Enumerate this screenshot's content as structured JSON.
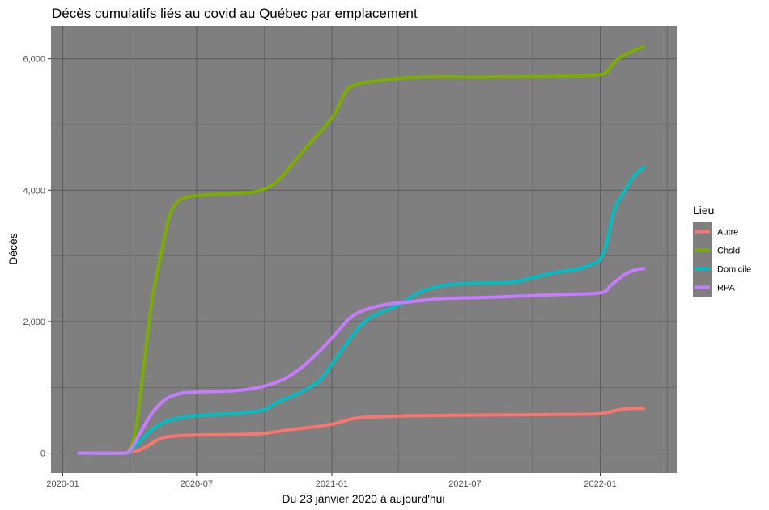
{
  "chart_data": {
    "type": "line",
    "title": "Décès cumulatifs liés au covid au Québec par emplacement",
    "xlabel": "Du 23 janvier 2020 à aujourd'hui",
    "ylabel": "Décès",
    "xlim": [
      "2019-12-16",
      "2022-04-15"
    ],
    "ylim": [
      -300,
      6500
    ],
    "x_ticks": [
      {
        "date": "2020-01-01",
        "label": "2020-01"
      },
      {
        "date": "2020-07-01",
        "label": "2020-07"
      },
      {
        "date": "2021-01-01",
        "label": "2021-01"
      },
      {
        "date": "2021-07-01",
        "label": "2021-07"
      },
      {
        "date": "2022-01-01",
        "label": "2022-01"
      }
    ],
    "y_ticks": [
      {
        "value": 0,
        "label": "0"
      },
      {
        "value": 2000,
        "label": "2,000"
      },
      {
        "value": 4000,
        "label": "4,000"
      },
      {
        "value": 6000,
        "label": "6,000"
      }
    ],
    "background": "#7f7f7f",
    "grid": true,
    "legend": {
      "title": "Lieu",
      "position": "right"
    },
    "series": [
      {
        "name": "Autre",
        "color": "#F8766D",
        "points": [
          [
            "2020-01-23",
            0
          ],
          [
            "2020-03-20",
            0
          ],
          [
            "2020-04-01",
            10
          ],
          [
            "2020-04-15",
            50
          ],
          [
            "2020-05-01",
            150
          ],
          [
            "2020-05-15",
            230
          ],
          [
            "2020-06-01",
            260
          ],
          [
            "2020-07-01",
            275
          ],
          [
            "2020-09-01",
            285
          ],
          [
            "2020-10-01",
            300
          ],
          [
            "2020-11-01",
            350
          ],
          [
            "2020-12-01",
            390
          ],
          [
            "2021-01-01",
            440
          ],
          [
            "2021-02-01",
            530
          ],
          [
            "2021-03-01",
            550
          ],
          [
            "2021-05-01",
            570
          ],
          [
            "2021-08-01",
            580
          ],
          [
            "2021-12-01",
            590
          ],
          [
            "2022-01-01",
            600
          ],
          [
            "2022-01-15",
            630
          ],
          [
            "2022-02-01",
            670
          ],
          [
            "2022-03-01",
            680
          ]
        ]
      },
      {
        "name": "Chsld",
        "color": "#7CAE00",
        "points": [
          [
            "2020-01-23",
            0
          ],
          [
            "2020-03-25",
            0
          ],
          [
            "2020-04-01",
            60
          ],
          [
            "2020-04-10",
            400
          ],
          [
            "2020-04-20",
            1300
          ],
          [
            "2020-05-01",
            2300
          ],
          [
            "2020-05-15",
            3100
          ],
          [
            "2020-05-25",
            3600
          ],
          [
            "2020-06-05",
            3820
          ],
          [
            "2020-06-20",
            3900
          ],
          [
            "2020-07-15",
            3930
          ],
          [
            "2020-09-01",
            3960
          ],
          [
            "2020-09-20",
            3980
          ],
          [
            "2020-10-15",
            4100
          ],
          [
            "2020-11-01",
            4300
          ],
          [
            "2020-12-01",
            4700
          ],
          [
            "2021-01-01",
            5100
          ],
          [
            "2021-01-20",
            5500
          ],
          [
            "2021-02-01",
            5600
          ],
          [
            "2021-03-01",
            5660
          ],
          [
            "2021-05-01",
            5720
          ],
          [
            "2021-08-01",
            5720
          ],
          [
            "2021-12-01",
            5740
          ],
          [
            "2022-01-01",
            5760
          ],
          [
            "2022-01-10",
            5800
          ],
          [
            "2022-01-25",
            6000
          ],
          [
            "2022-02-15",
            6120
          ],
          [
            "2022-03-01",
            6180
          ]
        ]
      },
      {
        "name": "Domicile",
        "color": "#00BFC4",
        "points": [
          [
            "2020-01-23",
            0
          ],
          [
            "2020-03-25",
            0
          ],
          [
            "2020-04-01",
            30
          ],
          [
            "2020-04-15",
            180
          ],
          [
            "2020-05-01",
            350
          ],
          [
            "2020-05-20",
            480
          ],
          [
            "2020-06-10",
            540
          ],
          [
            "2020-07-01",
            570
          ],
          [
            "2020-08-01",
            590
          ],
          [
            "2020-09-01",
            610
          ],
          [
            "2020-10-01",
            660
          ],
          [
            "2020-10-20",
            780
          ],
          [
            "2020-11-15",
            900
          ],
          [
            "2020-12-15",
            1100
          ],
          [
            "2021-01-01",
            1350
          ],
          [
            "2021-01-20",
            1650
          ],
          [
            "2021-02-10",
            1950
          ],
          [
            "2021-03-01",
            2100
          ],
          [
            "2021-04-01",
            2250
          ],
          [
            "2021-05-01",
            2450
          ],
          [
            "2021-06-01",
            2550
          ],
          [
            "2021-07-01",
            2580
          ],
          [
            "2021-09-01",
            2600
          ],
          [
            "2021-10-01",
            2670
          ],
          [
            "2021-11-01",
            2750
          ],
          [
            "2021-12-01",
            2800
          ],
          [
            "2021-12-20",
            2870
          ],
          [
            "2022-01-01",
            2950
          ],
          [
            "2022-01-10",
            3200
          ],
          [
            "2022-01-20",
            3700
          ],
          [
            "2022-02-01",
            3950
          ],
          [
            "2022-02-15",
            4200
          ],
          [
            "2022-03-01",
            4350
          ]
        ]
      },
      {
        "name": "RPA",
        "color": "#C77CFF",
        "points": [
          [
            "2020-01-23",
            0
          ],
          [
            "2020-03-20",
            0
          ],
          [
            "2020-04-01",
            40
          ],
          [
            "2020-04-15",
            300
          ],
          [
            "2020-05-01",
            600
          ],
          [
            "2020-05-20",
            820
          ],
          [
            "2020-06-10",
            910
          ],
          [
            "2020-07-01",
            930
          ],
          [
            "2020-08-01",
            940
          ],
          [
            "2020-09-01",
            960
          ],
          [
            "2020-10-01",
            1020
          ],
          [
            "2020-11-01",
            1150
          ],
          [
            "2020-12-01",
            1400
          ],
          [
            "2021-01-01",
            1750
          ],
          [
            "2021-01-25",
            2050
          ],
          [
            "2021-02-15",
            2180
          ],
          [
            "2021-03-15",
            2260
          ],
          [
            "2021-04-15",
            2300
          ],
          [
            "2021-06-01",
            2350
          ],
          [
            "2021-08-01",
            2370
          ],
          [
            "2021-11-01",
            2410
          ],
          [
            "2022-01-01",
            2440
          ],
          [
            "2022-01-15",
            2550
          ],
          [
            "2022-02-01",
            2700
          ],
          [
            "2022-02-15",
            2780
          ],
          [
            "2022-03-01",
            2810
          ]
        ]
      }
    ]
  }
}
